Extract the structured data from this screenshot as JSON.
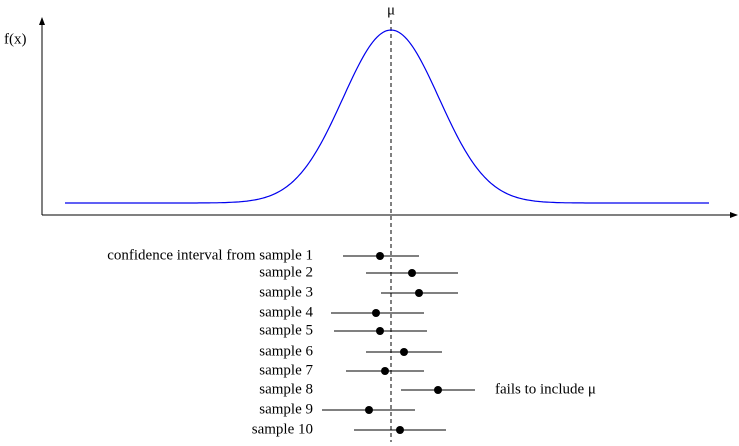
{
  "axis_label": "f(x)",
  "mean_label": "μ",
  "intervals": [
    "confidence interval from sample 1",
    "sample 2",
    "sample 3",
    "sample 4",
    "sample 5",
    "sample 6",
    "sample 7",
    "sample 8",
    "sample 9",
    "sample 10"
  ],
  "annotation": "fails to include μ"
}
